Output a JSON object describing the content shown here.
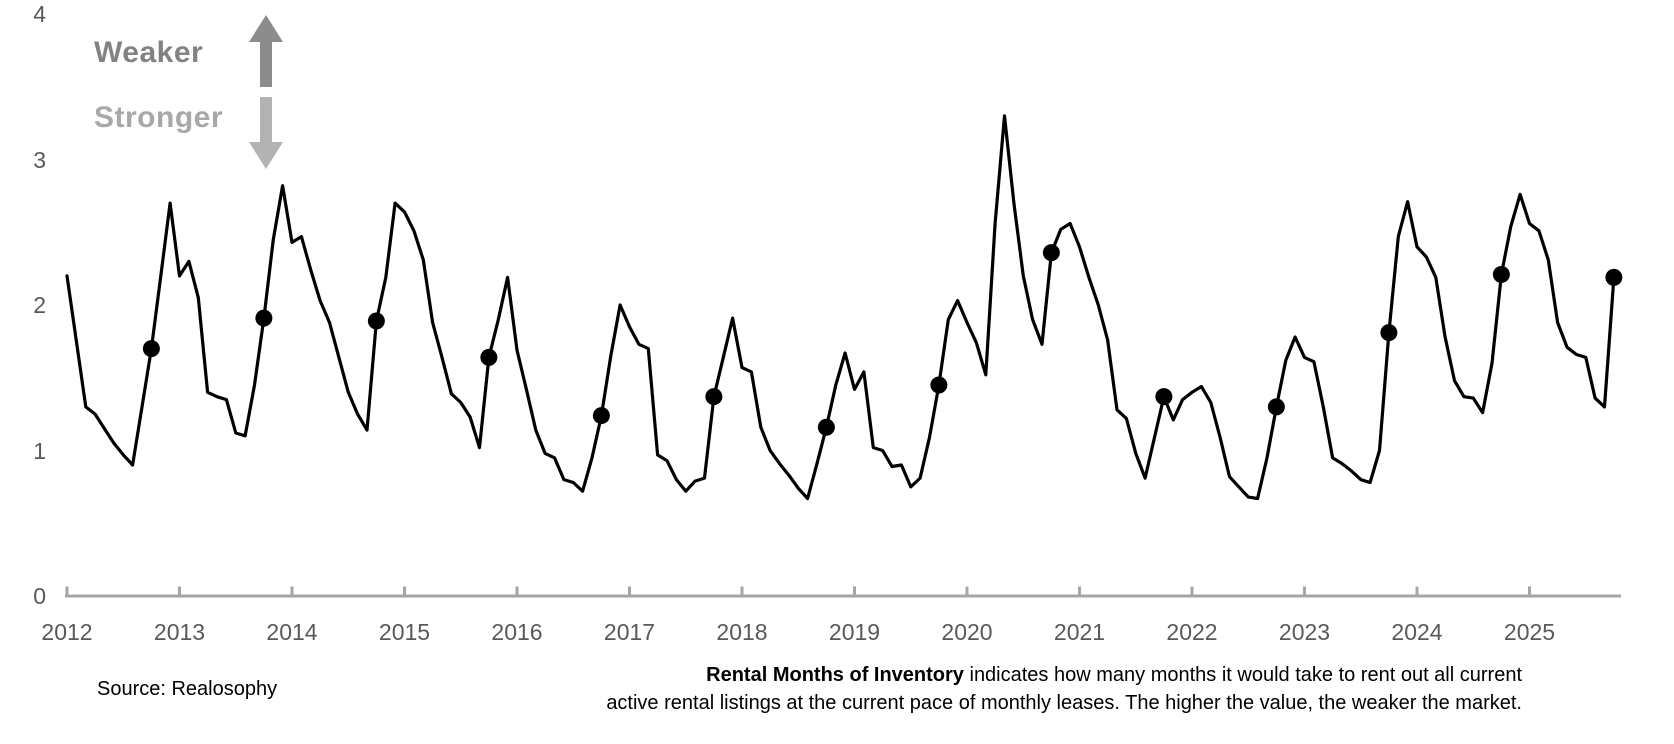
{
  "annotations": {
    "weaker_label": "Weaker",
    "stronger_label": "Stronger"
  },
  "source": {
    "text": "Source: Realosophy"
  },
  "description": {
    "bold_lead": "Rental Months of Inventory",
    "line1_rest": " indicates how many months it would take to rent out all current",
    "line2": "active rental listings at the current pace of monthly leases. The higher the value, the weaker the market."
  },
  "colors": {
    "line": "#000000",
    "marker": "#000000",
    "axis": "#a6a6a6",
    "tick_label": "#595959",
    "weaker_text": "#828282",
    "stronger_text": "#a8a8a8",
    "arrow_up": "#8c8c8c",
    "arrow_down": "#b3b3b3",
    "background": "#ffffff"
  },
  "chart_data": {
    "type": "line",
    "title": "Rental Months of Inventory",
    "xlabel": "",
    "ylabel": "",
    "frequency": "monthly",
    "x_start": "2012-01",
    "x_end": "2025-10",
    "ylim": [
      0,
      4
    ],
    "y_ticks": [
      0,
      1,
      2,
      3,
      4
    ],
    "x_tick_years": [
      "2012",
      "2013",
      "2014",
      "2015",
      "2016",
      "2017",
      "2018",
      "2019",
      "2020",
      "2021",
      "2022",
      "2023",
      "2024",
      "2025"
    ],
    "grid": false,
    "legend": "none",
    "series": [
      {
        "name": "Rental Months of Inventory",
        "values": [
          2.2,
          1.75,
          1.3,
          1.25,
          1.15,
          1.05,
          0.97,
          0.9,
          1.3,
          1.7,
          2.2,
          2.7,
          2.2,
          2.3,
          2.05,
          1.4,
          1.37,
          1.35,
          1.12,
          1.1,
          1.45,
          1.91,
          2.45,
          2.82,
          2.43,
          2.47,
          2.24,
          2.03,
          1.88,
          1.64,
          1.4,
          1.25,
          1.14,
          1.89,
          2.19,
          2.7,
          2.64,
          2.51,
          2.31,
          1.88,
          1.64,
          1.39,
          1.33,
          1.23,
          1.02,
          1.64,
          1.9,
          2.19,
          1.69,
          1.42,
          1.14,
          0.98,
          0.95,
          0.8,
          0.78,
          0.72,
          0.95,
          1.24,
          1.65,
          2.0,
          1.85,
          1.73,
          1.7,
          0.97,
          0.93,
          0.8,
          0.72,
          0.79,
          0.81,
          1.37,
          1.64,
          1.91,
          1.57,
          1.54,
          1.16,
          1.0,
          0.91,
          0.83,
          0.74,
          0.67,
          0.91,
          1.16,
          1.45,
          1.67,
          1.42,
          1.54,
          1.02,
          1.0,
          0.89,
          0.9,
          0.75,
          0.81,
          1.09,
          1.45,
          1.9,
          2.03,
          1.88,
          1.74,
          1.52,
          2.56,
          3.3,
          2.7,
          2.2,
          1.9,
          1.73,
          2.36,
          2.52,
          2.56,
          2.4,
          2.19,
          2.0,
          1.76,
          1.28,
          1.22,
          0.98,
          0.81,
          1.09,
          1.37,
          1.21,
          1.35,
          1.4,
          1.44,
          1.33,
          1.09,
          0.82,
          0.75,
          0.68,
          0.67,
          0.95,
          1.3,
          1.62,
          1.78,
          1.64,
          1.61,
          1.3,
          0.95,
          0.91,
          0.86,
          0.8,
          0.78,
          1.0,
          1.81,
          2.47,
          2.71,
          2.4,
          2.33,
          2.19,
          1.78,
          1.48,
          1.37,
          1.36,
          1.26,
          1.6,
          2.21,
          2.54,
          2.76,
          2.56,
          2.51,
          2.31,
          1.88,
          1.71,
          1.66,
          1.64,
          1.36,
          1.3,
          2.19
        ]
      }
    ],
    "markers": {
      "month": "October",
      "note": "black dots mark October of each year; final dot is the last data point",
      "points": [
        {
          "year": 2012,
          "value": 1.7
        },
        {
          "year": 2013,
          "value": 1.91
        },
        {
          "year": 2014,
          "value": 1.89
        },
        {
          "year": 2015,
          "value": 1.64
        },
        {
          "year": 2016,
          "value": 1.24
        },
        {
          "year": 2017,
          "value": 1.37
        },
        {
          "year": 2018,
          "value": 1.16
        },
        {
          "year": 2019,
          "value": 1.45
        },
        {
          "year": 2020,
          "value": 2.36
        },
        {
          "year": 2021,
          "value": 1.37
        },
        {
          "year": 2022,
          "value": 1.3
        },
        {
          "year": 2023,
          "value": 1.81
        },
        {
          "year": 2024,
          "value": 2.21
        },
        {
          "year": 2025,
          "value": 2.19
        }
      ]
    }
  }
}
